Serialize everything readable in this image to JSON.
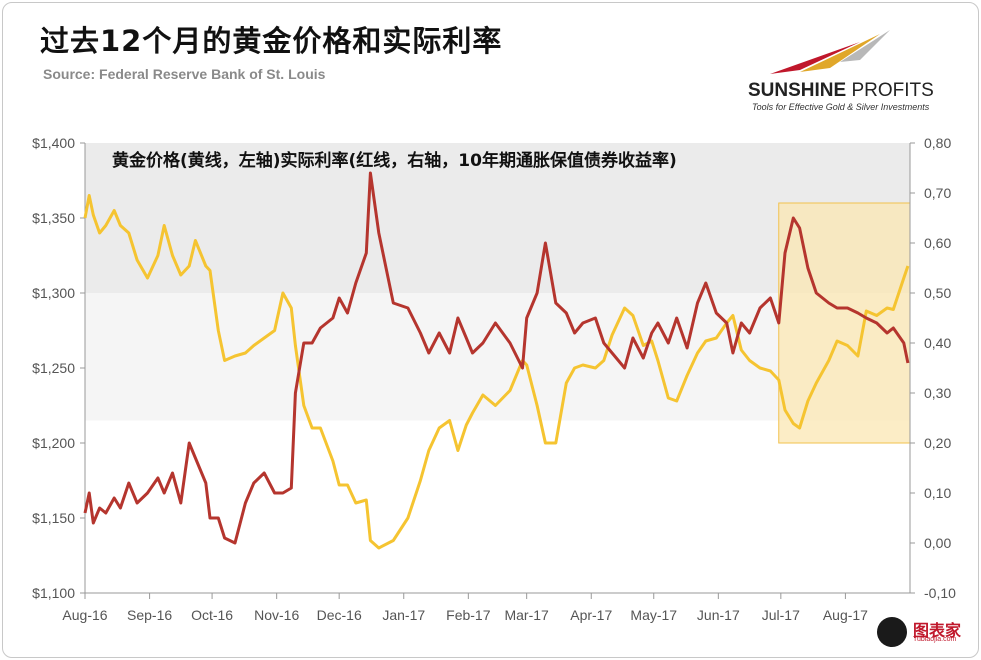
{
  "header": {
    "title": "过去12个月的黄金价格和实际利率",
    "source": "Source: Federal Reserve Bank of St. Louis"
  },
  "logo": {
    "name_bold": "SUNSHINE",
    "name_light": " PROFITS",
    "tagline": "Tools for Effective Gold & Silver Investments"
  },
  "watermark": {
    "name": "图表家",
    "sub": "Tubiaojia.com"
  },
  "colors": {
    "gold": "#f5c431",
    "rate": "#b5352e",
    "band": "#e9e9e9",
    "highlight": "#fbe7b3",
    "highlight_border": "#f2c24e"
  },
  "chart_data": {
    "type": "line",
    "annotation": "黄金价格(黄线，左轴)实际利率(红线，右轴，10年期通胀保值债券收益率)",
    "x_ticks": [
      "Aug-16",
      "Sep-16",
      "Oct-16",
      "Nov-16",
      "Dec-16",
      "Jan-17",
      "Feb-17",
      "Mar-17",
      "Apr-17",
      "May-17",
      "Jun-17",
      "Jul-17",
      "Aug-17"
    ],
    "y_left": {
      "min": 1100,
      "max": 1400,
      "ticks": [
        "$1,100",
        "$1,150",
        "$1,200",
        "$1,250",
        "$1,300",
        "$1,350",
        "$1,400"
      ]
    },
    "y_right": {
      "min": -0.1,
      "max": 0.8,
      "ticks": [
        "-0,10",
        "0,00",
        "0,10",
        "0,20",
        "0,30",
        "0,40",
        "0,50",
        "0,60",
        "0,70",
        "0,80"
      ]
    },
    "grid": false,
    "series": [
      {
        "axis": "left",
        "color": "#f5c431",
        "points": [
          [
            "2016-08-01",
            1350
          ],
          [
            "2016-08-03",
            1365
          ],
          [
            "2016-08-05",
            1352
          ],
          [
            "2016-08-08",
            1340
          ],
          [
            "2016-08-11",
            1345
          ],
          [
            "2016-08-15",
            1355
          ],
          [
            "2016-08-18",
            1345
          ],
          [
            "2016-08-22",
            1340
          ],
          [
            "2016-08-26",
            1322
          ],
          [
            "2016-08-31",
            1310
          ],
          [
            "2016-09-05",
            1325
          ],
          [
            "2016-09-08",
            1345
          ],
          [
            "2016-09-12",
            1325
          ],
          [
            "2016-09-16",
            1312
          ],
          [
            "2016-09-20",
            1318
          ],
          [
            "2016-09-23",
            1335
          ],
          [
            "2016-09-28",
            1318
          ],
          [
            "2016-09-30",
            1315
          ],
          [
            "2016-10-04",
            1275
          ],
          [
            "2016-10-07",
            1255
          ],
          [
            "2016-10-12",
            1258
          ],
          [
            "2016-10-17",
            1260
          ],
          [
            "2016-10-21",
            1265
          ],
          [
            "2016-10-26",
            1270
          ],
          [
            "2016-10-31",
            1275
          ],
          [
            "2016-11-04",
            1300
          ],
          [
            "2016-11-08",
            1290
          ],
          [
            "2016-11-10",
            1265
          ],
          [
            "2016-11-14",
            1225
          ],
          [
            "2016-11-18",
            1210
          ],
          [
            "2016-11-22",
            1210
          ],
          [
            "2016-11-28",
            1188
          ],
          [
            "2016-12-01",
            1172
          ],
          [
            "2016-12-05",
            1172
          ],
          [
            "2016-12-09",
            1160
          ],
          [
            "2016-12-14",
            1162
          ],
          [
            "2016-12-16",
            1135
          ],
          [
            "2016-12-20",
            1130
          ],
          [
            "2016-12-27",
            1135
          ],
          [
            "2017-01-03",
            1150
          ],
          [
            "2017-01-09",
            1175
          ],
          [
            "2017-01-13",
            1195
          ],
          [
            "2017-01-18",
            1210
          ],
          [
            "2017-01-23",
            1215
          ],
          [
            "2017-01-27",
            1195
          ],
          [
            "2017-01-31",
            1212
          ],
          [
            "2017-02-03",
            1220
          ],
          [
            "2017-02-08",
            1232
          ],
          [
            "2017-02-14",
            1225
          ],
          [
            "2017-02-21",
            1235
          ],
          [
            "2017-02-27",
            1255
          ],
          [
            "2017-03-01",
            1252
          ],
          [
            "2017-03-06",
            1225
          ],
          [
            "2017-03-10",
            1200
          ],
          [
            "2017-03-15",
            1200
          ],
          [
            "2017-03-20",
            1240
          ],
          [
            "2017-03-24",
            1250
          ],
          [
            "2017-03-28",
            1252
          ],
          [
            "2017-04-03",
            1250
          ],
          [
            "2017-04-07",
            1255
          ],
          [
            "2017-04-11",
            1272
          ],
          [
            "2017-04-17",
            1290
          ],
          [
            "2017-04-21",
            1285
          ],
          [
            "2017-04-26",
            1265
          ],
          [
            "2017-04-30",
            1268
          ],
          [
            "2017-05-03",
            1255
          ],
          [
            "2017-05-08",
            1230
          ],
          [
            "2017-05-12",
            1228
          ],
          [
            "2017-05-17",
            1245
          ],
          [
            "2017-05-22",
            1260
          ],
          [
            "2017-05-26",
            1268
          ],
          [
            "2017-05-31",
            1270
          ],
          [
            "2017-06-05",
            1280
          ],
          [
            "2017-06-08",
            1285
          ],
          [
            "2017-06-12",
            1262
          ],
          [
            "2017-06-16",
            1255
          ],
          [
            "2017-06-21",
            1250
          ],
          [
            "2017-06-26",
            1248
          ],
          [
            "2017-06-30",
            1242
          ],
          [
            "2017-07-03",
            1222
          ],
          [
            "2017-07-07",
            1213
          ],
          [
            "2017-07-10",
            1210
          ],
          [
            "2017-07-14",
            1228
          ],
          [
            "2017-07-18",
            1240
          ],
          [
            "2017-07-24",
            1255
          ],
          [
            "2017-07-28",
            1268
          ],
          [
            "2017-08-02",
            1265
          ],
          [
            "2017-08-07",
            1258
          ],
          [
            "2017-08-11",
            1288
          ],
          [
            "2017-08-16",
            1285
          ],
          [
            "2017-08-21",
            1290
          ],
          [
            "2017-08-24",
            1289
          ],
          [
            "2017-08-29",
            1310
          ],
          [
            "2017-08-31",
            1318
          ]
        ]
      },
      {
        "axis": "right",
        "color": "#b5352e",
        "points": [
          [
            "2016-08-01",
            0.06
          ],
          [
            "2016-08-03",
            0.1
          ],
          [
            "2016-08-05",
            0.04
          ],
          [
            "2016-08-08",
            0.07
          ],
          [
            "2016-08-11",
            0.06
          ],
          [
            "2016-08-15",
            0.09
          ],
          [
            "2016-08-18",
            0.07
          ],
          [
            "2016-08-22",
            0.12
          ],
          [
            "2016-08-26",
            0.08
          ],
          [
            "2016-08-31",
            0.1
          ],
          [
            "2016-09-05",
            0.13
          ],
          [
            "2016-09-08",
            0.1
          ],
          [
            "2016-09-12",
            0.14
          ],
          [
            "2016-09-16",
            0.08
          ],
          [
            "2016-09-20",
            0.2
          ],
          [
            "2016-09-23",
            0.17
          ],
          [
            "2016-09-28",
            0.12
          ],
          [
            "2016-09-30",
            0.05
          ],
          [
            "2016-10-04",
            0.05
          ],
          [
            "2016-10-07",
            0.01
          ],
          [
            "2016-10-12",
            0.0
          ],
          [
            "2016-10-17",
            0.08
          ],
          [
            "2016-10-21",
            0.12
          ],
          [
            "2016-10-26",
            0.14
          ],
          [
            "2016-10-31",
            0.1
          ],
          [
            "2016-11-04",
            0.1
          ],
          [
            "2016-11-08",
            0.11
          ],
          [
            "2016-11-10",
            0.3
          ],
          [
            "2016-11-14",
            0.4
          ],
          [
            "2016-11-18",
            0.4
          ],
          [
            "2016-11-22",
            0.43
          ],
          [
            "2016-11-28",
            0.45
          ],
          [
            "2016-12-01",
            0.49
          ],
          [
            "2016-12-05",
            0.46
          ],
          [
            "2016-12-09",
            0.52
          ],
          [
            "2016-12-14",
            0.58
          ],
          [
            "2016-12-16",
            0.74
          ],
          [
            "2016-12-20",
            0.62
          ],
          [
            "2016-12-27",
            0.48
          ],
          [
            "2017-01-03",
            0.47
          ],
          [
            "2017-01-09",
            0.42
          ],
          [
            "2017-01-13",
            0.38
          ],
          [
            "2017-01-18",
            0.42
          ],
          [
            "2017-01-23",
            0.38
          ],
          [
            "2017-01-27",
            0.45
          ],
          [
            "2017-01-31",
            0.41
          ],
          [
            "2017-02-03",
            0.38
          ],
          [
            "2017-02-08",
            0.4
          ],
          [
            "2017-02-14",
            0.44
          ],
          [
            "2017-02-21",
            0.4
          ],
          [
            "2017-02-27",
            0.35
          ],
          [
            "2017-03-01",
            0.45
          ],
          [
            "2017-03-06",
            0.5
          ],
          [
            "2017-03-10",
            0.6
          ],
          [
            "2017-03-15",
            0.48
          ],
          [
            "2017-03-20",
            0.46
          ],
          [
            "2017-03-24",
            0.42
          ],
          [
            "2017-03-28",
            0.44
          ],
          [
            "2017-04-03",
            0.45
          ],
          [
            "2017-04-07",
            0.4
          ],
          [
            "2017-04-11",
            0.38
          ],
          [
            "2017-04-17",
            0.35
          ],
          [
            "2017-04-21",
            0.41
          ],
          [
            "2017-04-26",
            0.37
          ],
          [
            "2017-04-30",
            0.42
          ],
          [
            "2017-05-03",
            0.44
          ],
          [
            "2017-05-08",
            0.4
          ],
          [
            "2017-05-12",
            0.45
          ],
          [
            "2017-05-17",
            0.39
          ],
          [
            "2017-05-22",
            0.48
          ],
          [
            "2017-05-26",
            0.52
          ],
          [
            "2017-05-31",
            0.46
          ],
          [
            "2017-06-05",
            0.44
          ],
          [
            "2017-06-08",
            0.38
          ],
          [
            "2017-06-12",
            0.44
          ],
          [
            "2017-06-16",
            0.42
          ],
          [
            "2017-06-21",
            0.47
          ],
          [
            "2017-06-26",
            0.49
          ],
          [
            "2017-06-30",
            0.44
          ],
          [
            "2017-07-03",
            0.58
          ],
          [
            "2017-07-07",
            0.65
          ],
          [
            "2017-07-10",
            0.63
          ],
          [
            "2017-07-14",
            0.55
          ],
          [
            "2017-07-18",
            0.5
          ],
          [
            "2017-07-24",
            0.48
          ],
          [
            "2017-07-28",
            0.47
          ],
          [
            "2017-08-02",
            0.47
          ],
          [
            "2017-08-07",
            0.46
          ],
          [
            "2017-08-11",
            0.45
          ],
          [
            "2017-08-16",
            0.44
          ],
          [
            "2017-08-21",
            0.42
          ],
          [
            "2017-08-24",
            0.43
          ],
          [
            "2017-08-29",
            0.4
          ],
          [
            "2017-08-31",
            0.36
          ]
        ]
      }
    ]
  }
}
